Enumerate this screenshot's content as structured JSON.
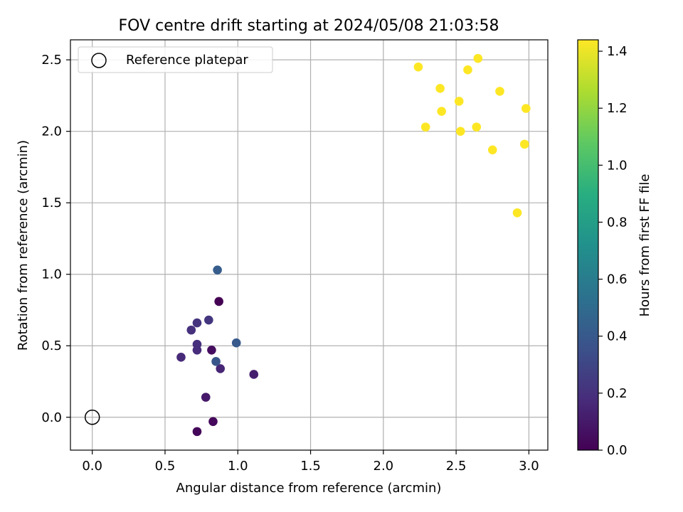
{
  "chart_data": {
    "type": "scatter",
    "title": "FOV centre drift starting at 2024/05/08 21:03:58",
    "xlabel": "Angular distance from reference (arcmin)",
    "ylabel": "Rotation from reference (arcmin)",
    "xlim": [
      -0.15,
      3.13
    ],
    "ylim": [
      -0.23,
      2.64
    ],
    "xticks": [
      0.0,
      0.5,
      1.0,
      1.5,
      2.0,
      2.5,
      3.0
    ],
    "yticks": [
      0.0,
      0.5,
      1.0,
      1.5,
      2.0,
      2.5
    ],
    "grid": true,
    "legend": {
      "position": "top-left",
      "entries": [
        "Reference platepar"
      ]
    },
    "reference_point": {
      "label": "Reference platepar",
      "x": 0.0,
      "y": 0.0
    },
    "colorbar": {
      "label": "Hours from first FF file",
      "colormap": "viridis",
      "range": [
        0.0,
        1.44
      ],
      "ticks": [
        0.0,
        0.2,
        0.4,
        0.6,
        0.8,
        1.0,
        1.2,
        1.4
      ]
    },
    "points": [
      {
        "x": 0.87,
        "y": 0.81,
        "hours": 0.0
      },
      {
        "x": 0.72,
        "y": -0.1,
        "hours": 0.02
      },
      {
        "x": 0.83,
        "y": -0.03,
        "hours": 0.03
      },
      {
        "x": 0.82,
        "y": 0.47,
        "hours": 0.05
      },
      {
        "x": 0.78,
        "y": 0.14,
        "hours": 0.1
      },
      {
        "x": 1.11,
        "y": 0.3,
        "hours": 0.12
      },
      {
        "x": 0.88,
        "y": 0.34,
        "hours": 0.15
      },
      {
        "x": 0.61,
        "y": 0.42,
        "hours": 0.17
      },
      {
        "x": 0.72,
        "y": 0.47,
        "hours": 0.18
      },
      {
        "x": 0.72,
        "y": 0.51,
        "hours": 0.19
      },
      {
        "x": 0.68,
        "y": 0.61,
        "hours": 0.2
      },
      {
        "x": 0.72,
        "y": 0.66,
        "hours": 0.21
      },
      {
        "x": 0.8,
        "y": 0.68,
        "hours": 0.22
      },
      {
        "x": 0.85,
        "y": 0.39,
        "hours": 0.38
      },
      {
        "x": 0.99,
        "y": 0.52,
        "hours": 0.4
      },
      {
        "x": 0.86,
        "y": 1.03,
        "hours": 0.42
      },
      {
        "x": 2.24,
        "y": 2.45,
        "hours": 1.44
      },
      {
        "x": 2.65,
        "y": 2.51,
        "hours": 1.44
      },
      {
        "x": 2.58,
        "y": 2.43,
        "hours": 1.44
      },
      {
        "x": 2.39,
        "y": 2.3,
        "hours": 1.44
      },
      {
        "x": 2.8,
        "y": 2.28,
        "hours": 1.44
      },
      {
        "x": 2.52,
        "y": 2.21,
        "hours": 1.44
      },
      {
        "x": 2.4,
        "y": 2.14,
        "hours": 1.44
      },
      {
        "x": 2.98,
        "y": 2.16,
        "hours": 1.44
      },
      {
        "x": 2.29,
        "y": 2.03,
        "hours": 1.44
      },
      {
        "x": 2.64,
        "y": 2.03,
        "hours": 1.44
      },
      {
        "x": 2.53,
        "y": 2.0,
        "hours": 1.44
      },
      {
        "x": 2.97,
        "y": 1.91,
        "hours": 1.44
      },
      {
        "x": 2.75,
        "y": 1.87,
        "hours": 1.44
      },
      {
        "x": 2.92,
        "y": 1.43,
        "hours": 1.44
      }
    ]
  }
}
